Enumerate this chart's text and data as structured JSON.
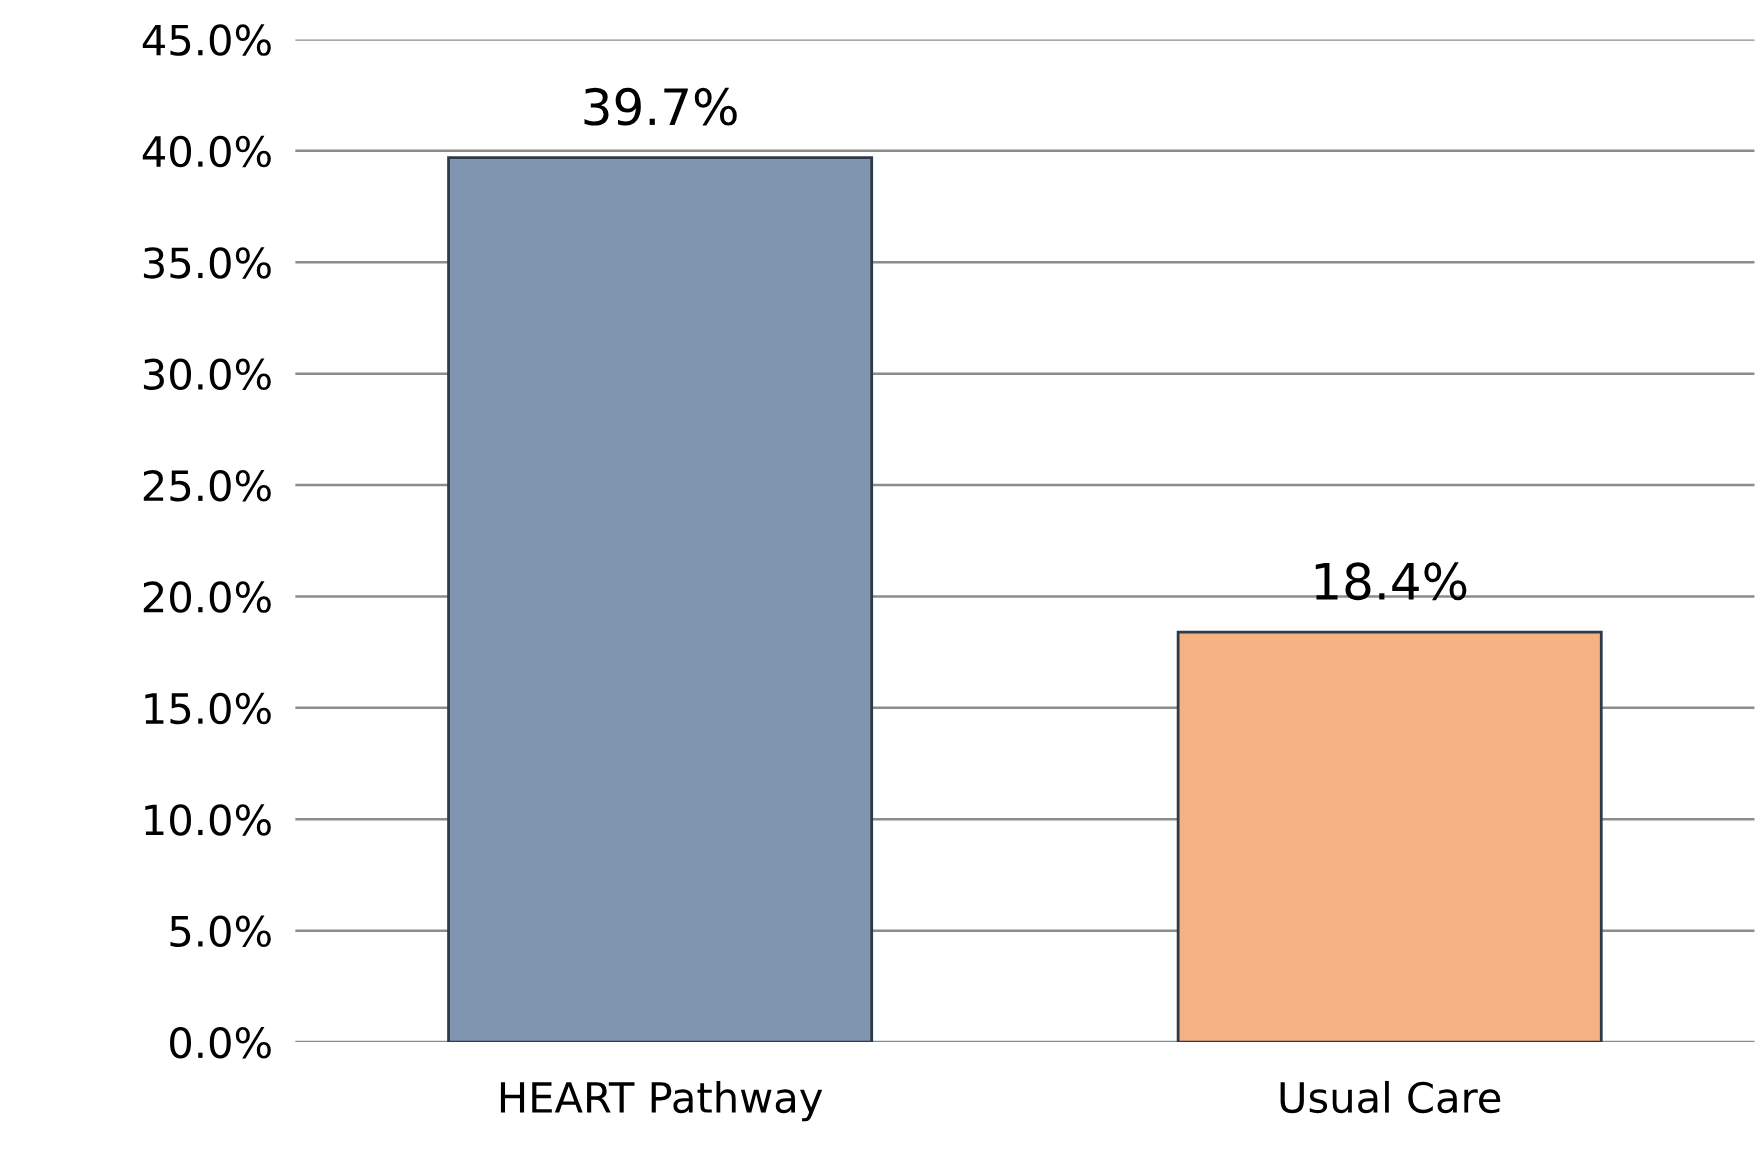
{
  "chart_data": {
    "type": "bar",
    "categories": [
      "HEART Pathway",
      "Usual Care"
    ],
    "values": [
      39.7,
      18.4
    ],
    "colors": [
      "#8096b0",
      "#f4b183"
    ],
    "value_labels": [
      "39.7%",
      "18.4%"
    ],
    "ylim": [
      0,
      45
    ],
    "yticks": [
      {
        "value": 0,
        "label": "0.0%"
      },
      {
        "value": 5,
        "label": "5.0%"
      },
      {
        "value": 10,
        "label": "10.0%"
      },
      {
        "value": 15,
        "label": "15.0%"
      },
      {
        "value": 20,
        "label": "20.0%"
      },
      {
        "value": 25,
        "label": "25.0%"
      },
      {
        "value": 30,
        "label": "30.0%"
      },
      {
        "value": 35,
        "label": "35.0%"
      },
      {
        "value": 40,
        "label": "40.0%"
      },
      {
        "value": 45,
        "label": "45.0%"
      }
    ],
    "grid": "y",
    "legend": false
  }
}
